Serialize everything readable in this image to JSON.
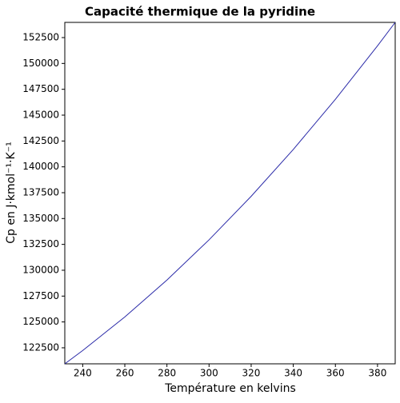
{
  "chart_data": {
    "type": "line",
    "title": "Capacité thermique de la pyridine",
    "x_label": "Température en kelvins",
    "y_label": "Cp en J·kmol⁻¹·K⁻¹",
    "x": [
      231.5,
      240,
      260,
      280,
      300,
      320,
      340,
      360,
      380,
      388.4
    ],
    "series": [
      {
        "name": "Cp",
        "color": "#2a2aa8",
        "values": [
          120950,
          122234,
          125482,
          129051,
          132940,
          137150,
          141681,
          146531,
          151703,
          153970
        ]
      }
    ],
    "xlim": [
      231.5,
      388.4
    ],
    "ylim": [
      120950,
      153970
    ],
    "xticks": [
      240,
      260,
      280,
      300,
      320,
      340,
      360,
      380
    ],
    "yticks": [
      122500,
      125000,
      127500,
      130000,
      132500,
      135000,
      137500,
      140000,
      142500,
      145000,
      147500,
      150000,
      152500
    ],
    "grid": false
  }
}
